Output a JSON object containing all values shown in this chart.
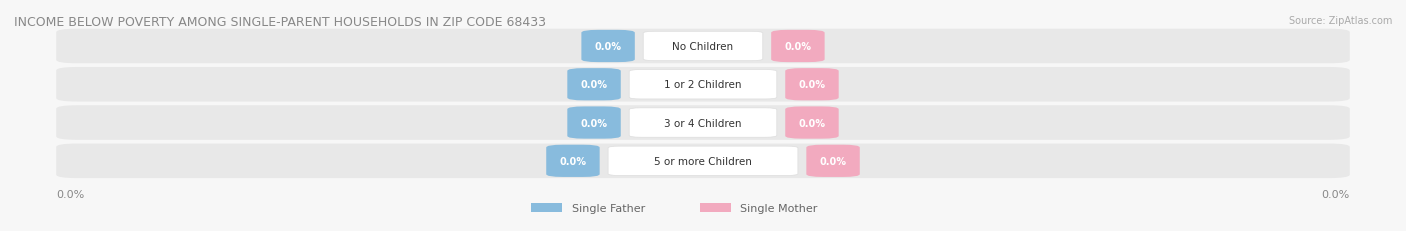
{
  "title": "INCOME BELOW POVERTY AMONG SINGLE-PARENT HOUSEHOLDS IN ZIP CODE 68433",
  "source": "Source: ZipAtlas.com",
  "categories": [
    "No Children",
    "1 or 2 Children",
    "3 or 4 Children",
    "5 or more Children"
  ],
  "single_father_values": [
    0.0,
    0.0,
    0.0,
    0.0
  ],
  "single_mother_values": [
    0.0,
    0.0,
    0.0,
    0.0
  ],
  "father_color": "#88bbdd",
  "mother_color": "#f2aabf",
  "bar_row_bg": "#e8e8e8",
  "axis_label_left": "0.0%",
  "axis_label_right": "0.0%",
  "background_color": "#f7f7f7",
  "title_fontsize": 9,
  "source_fontsize": 7,
  "tick_fontsize": 8,
  "legend_fontsize": 8,
  "value_fontsize": 7,
  "cat_fontsize": 7.5
}
